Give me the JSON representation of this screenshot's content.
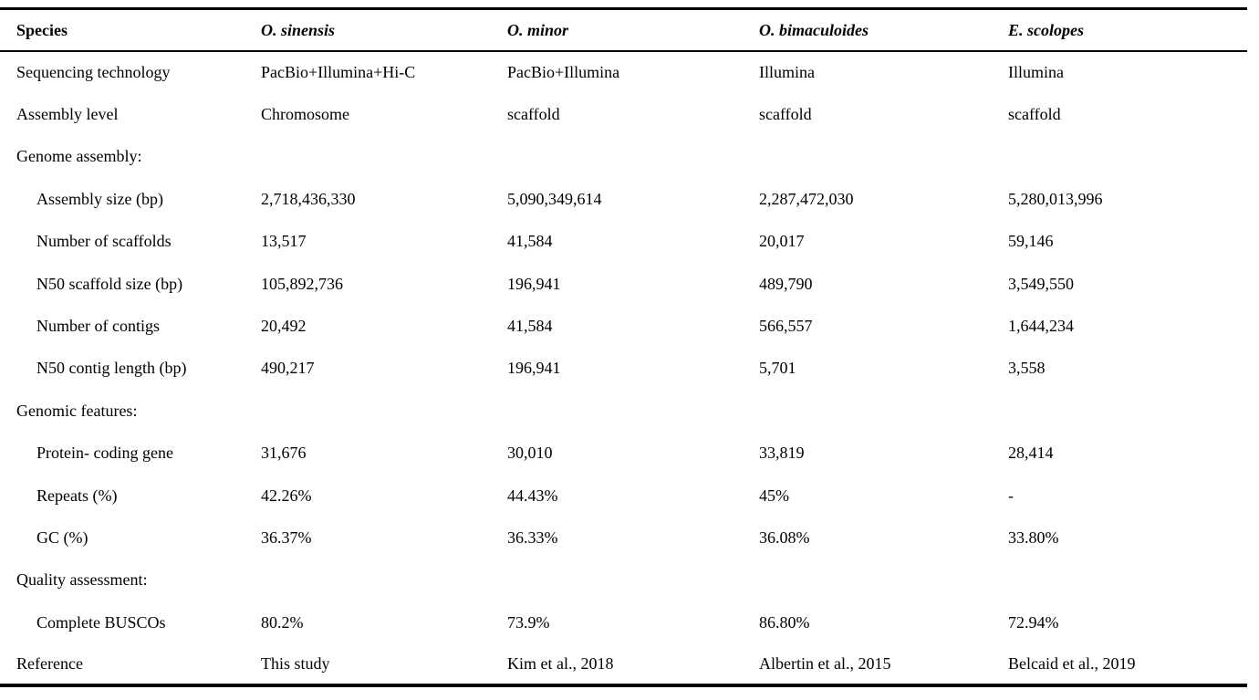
{
  "table": {
    "columns": [
      {
        "label": "Species"
      },
      {
        "label": "O. sinensis"
      },
      {
        "label": "O. minor"
      },
      {
        "label": "O. bimaculoides"
      },
      {
        "label": "E. scolopes"
      }
    ],
    "rows": [
      {
        "label": "Sequencing technology",
        "type": "row",
        "values": [
          "PacBio+Illumina+Hi-C",
          "PacBio+Illumina",
          "Illumina",
          "Illumina"
        ]
      },
      {
        "label": "Assembly level",
        "type": "row",
        "values": [
          "Chromosome",
          "scaffold",
          "scaffold",
          "scaffold"
        ]
      },
      {
        "label": "Genome assembly:",
        "type": "section",
        "values": [
          "",
          "",
          "",
          ""
        ]
      },
      {
        "label": "Assembly size (bp)",
        "type": "sub",
        "values": [
          "2,718,436,330",
          "5,090,349,614",
          "2,287,472,030",
          "5,280,013,996"
        ]
      },
      {
        "label": "Number of scaffolds",
        "type": "sub",
        "values": [
          "13,517",
          "41,584",
          "20,017",
          "59,146"
        ]
      },
      {
        "label": "N50 scaffold size (bp)",
        "type": "sub",
        "values": [
          "105,892,736",
          "196,941",
          "489,790",
          "3,549,550"
        ]
      },
      {
        "label": "Number of contigs",
        "type": "sub",
        "values": [
          "20,492",
          "41,584",
          "566,557",
          "1,644,234"
        ]
      },
      {
        "label": "N50 contig length (bp)",
        "type": "sub",
        "values": [
          "490,217",
          "196,941",
          "5,701",
          "3,558"
        ]
      },
      {
        "label": "Genomic features:",
        "type": "section",
        "values": [
          "",
          "",
          "",
          ""
        ]
      },
      {
        "label": "Protein- coding gene",
        "type": "sub",
        "values": [
          "31,676",
          "30,010",
          "33,819",
          "28,414"
        ]
      },
      {
        "label": "Repeats (%)",
        "type": "sub",
        "values": [
          "42.26%",
          "44.43%",
          "45%",
          "-"
        ]
      },
      {
        "label": "GC (%)",
        "type": "sub",
        "values": [
          "36.37%",
          "36.33%",
          "36.08%",
          "33.80%"
        ]
      },
      {
        "label": "Quality assessment:",
        "type": "section",
        "values": [
          "",
          "",
          "",
          ""
        ]
      },
      {
        "label": "Complete BUSCOs",
        "type": "sub",
        "values": [
          "80.2%",
          "73.9%",
          "86.80%",
          "72.94%"
        ]
      },
      {
        "label": "Reference",
        "type": "row",
        "values": [
          "This study",
          "Kim et al., 2018",
          "Albertin et al., 2015",
          "Belcaid et al., 2019"
        ]
      }
    ]
  }
}
